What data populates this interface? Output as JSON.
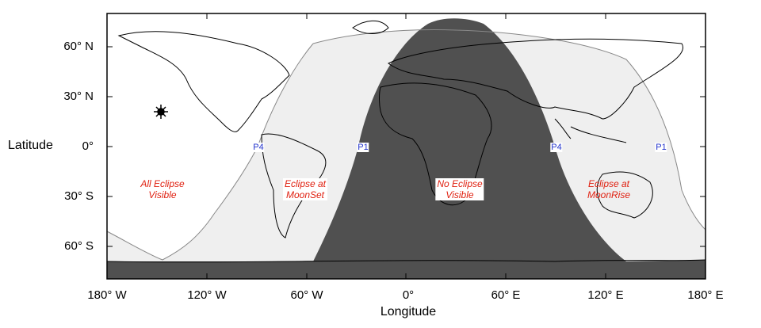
{
  "axes": {
    "ylabel": "Latitude",
    "xlabel": "Longitude",
    "lat_ticks": [
      "60° N",
      "30° N",
      "0°",
      "30° S",
      "60° S"
    ],
    "lon_ticks": [
      "180° W",
      "120° W",
      "60° W",
      "0°",
      "60° E",
      "120° E",
      "180° E"
    ]
  },
  "regions": {
    "all": [
      "All Eclipse",
      "Visible"
    ],
    "moonset": [
      "Eclipse at",
      "MoonSet"
    ],
    "none": [
      "No Eclipse",
      "Visible"
    ],
    "moonrise": [
      "Eclipse at",
      "MoonRise"
    ]
  },
  "contacts": [
    "P4",
    "P1",
    "P4",
    "P1"
  ],
  "colors": {
    "no_eclipse": "#505050",
    "partial": "#efefef",
    "all": "#ffffff",
    "label": "#e02010",
    "contact": "#2233cc"
  },
  "icons": {
    "subsolar": "sun-icon"
  }
}
